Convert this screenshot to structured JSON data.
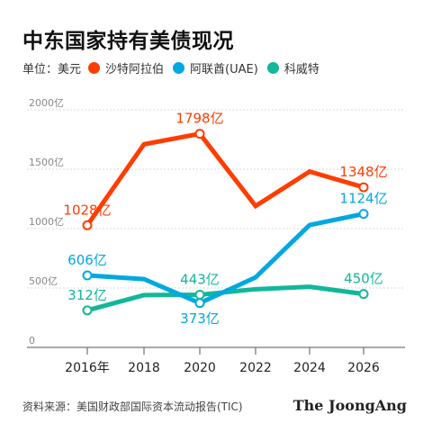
{
  "title": "中东国家持有美债现况",
  "legend": {
    "unit_label": "单位：美元",
    "items": [
      {
        "label": "沙特阿拉伯",
        "color": "#ff3d00"
      },
      {
        "label": "阿联酋(UAE)",
        "color": "#00a8e0"
      },
      {
        "label": "科威特",
        "color": "#12b79a"
      }
    ]
  },
  "footer": {
    "source": "资料来源：美国财政部国际资本流动报告(TIC)",
    "brand": "The JoongAng"
  },
  "chart_data": {
    "type": "line",
    "x": [
      2016,
      2018,
      2020,
      2022,
      2024,
      2026
    ],
    "x_tick_labels": [
      "2016年",
      "2018",
      "2020",
      "2022",
      "2024",
      "2026"
    ],
    "y_tick_labels": [
      "0",
      "500亿",
      "1000亿",
      "1500亿",
      "2000亿"
    ],
    "ylim": [
      0,
      2000
    ],
    "grid": true,
    "series": [
      {
        "name": "沙特阿拉伯",
        "color": "#ff3d00",
        "points": [
          [
            2016,
            1028
          ],
          [
            2018,
            1710
          ],
          [
            2020,
            1798
          ],
          [
            2022,
            1190
          ],
          [
            2024,
            1480
          ],
          [
            2026,
            1348
          ]
        ],
        "labels": [
          {
            "x": 2016,
            "y": 1028,
            "text": "1028亿",
            "pos": "above"
          },
          {
            "x": 2020,
            "y": 1798,
            "text": "1798亿",
            "pos": "above"
          },
          {
            "x": 2026,
            "y": 1348,
            "text": "1348亿",
            "pos": "above"
          }
        ]
      },
      {
        "name": "阿联酋(UAE)",
        "color": "#00a8e0",
        "points": [
          [
            2016,
            606
          ],
          [
            2018,
            575
          ],
          [
            2020,
            373
          ],
          [
            2022,
            590
          ],
          [
            2024,
            1030
          ],
          [
            2026,
            1124
          ]
        ],
        "labels": [
          {
            "x": 2016,
            "y": 606,
            "text": "606亿",
            "pos": "above"
          },
          {
            "x": 2020,
            "y": 373,
            "text": "373亿",
            "pos": "below"
          },
          {
            "x": 2026,
            "y": 1124,
            "text": "1124亿",
            "pos": "above"
          }
        ]
      },
      {
        "name": "科威特",
        "color": "#12b79a",
        "points": [
          [
            2016,
            312
          ],
          [
            2018,
            440
          ],
          [
            2020,
            443
          ],
          [
            2022,
            490
          ],
          [
            2024,
            510
          ],
          [
            2026,
            450
          ]
        ],
        "labels": [
          {
            "x": 2016,
            "y": 312,
            "text": "312亿",
            "pos": "above"
          },
          {
            "x": 2020,
            "y": 443,
            "text": "443亿",
            "pos": "above"
          },
          {
            "x": 2026,
            "y": 450,
            "text": "450亿",
            "pos": "above"
          }
        ]
      }
    ]
  }
}
